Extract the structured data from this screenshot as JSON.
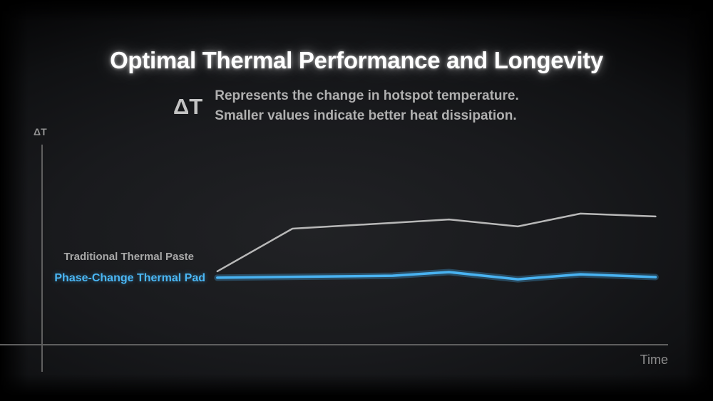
{
  "slide": {
    "title": "Optimal Thermal Performance and Longevity",
    "delta_symbol": "ΔT",
    "delta_desc_line1": "Represents the change in hotspot temperature.",
    "delta_desc_line2": "Smaller values indicate better heat dissipation."
  },
  "chart_data": {
    "type": "line",
    "title": "",
    "xlabel": "Time",
    "ylabel": "ΔT",
    "xlim": [
      0,
      10
    ],
    "ylim": [
      0,
      100
    ],
    "grid": false,
    "axes_numeric_labels": false,
    "legend_position": "left of line start, stacked",
    "series": [
      {
        "name": "Traditional Thermal Paste",
        "color": "#b8b8b8",
        "glow": false,
        "points": [
          [
            2.8,
            36.7
          ],
          [
            4.0,
            58.0
          ],
          [
            5.6,
            60.9
          ],
          [
            6.5,
            62.6
          ],
          [
            7.6,
            59.1
          ],
          [
            8.6,
            65.5
          ],
          [
            9.8,
            64.1
          ]
        ]
      },
      {
        "name": "Phase-Change Thermal Pad",
        "color": "#49b3f2",
        "glow": true,
        "points": [
          [
            2.8,
            33.5
          ],
          [
            5.6,
            34.5
          ],
          [
            6.5,
            36.3
          ],
          [
            7.6,
            32.7
          ],
          [
            8.6,
            35.2
          ],
          [
            9.8,
            33.8
          ]
        ]
      }
    ]
  },
  "colors": {
    "background_center": "#212225",
    "background_edge": "#000000",
    "axis": "#5f5f5f",
    "title_text": "#ffffff",
    "description_text": "#b0b0b0",
    "series_gray": "#b8b8b8",
    "series_blue": "#49b3f2"
  }
}
